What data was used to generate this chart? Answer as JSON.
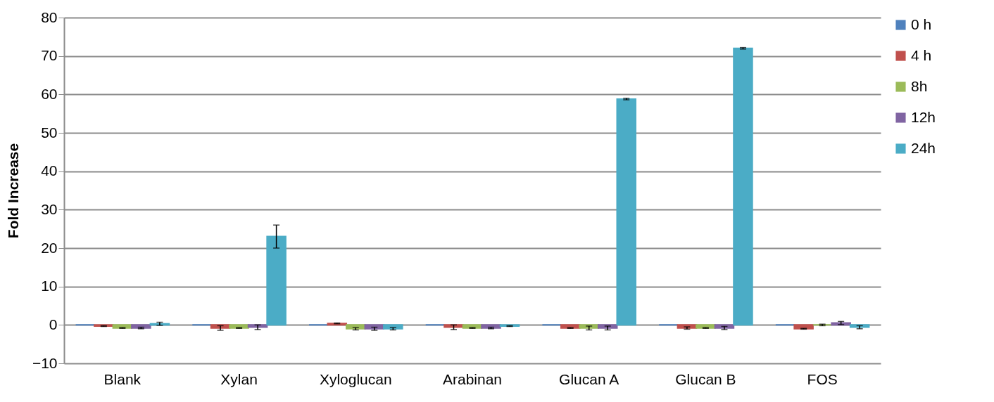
{
  "chart_data": {
    "type": "bar",
    "ylabel": "Fold Increase",
    "categories": [
      "Blank",
      "Xylan",
      "Xyloglucan",
      "Arabinan",
      "Glucan A",
      "Glucan B",
      "FOS"
    ],
    "ylim": [
      -10,
      80
    ],
    "yticks": [
      -10,
      0,
      10,
      20,
      30,
      40,
      50,
      60,
      70,
      80
    ],
    "grid": "y",
    "legend": "right",
    "series": [
      {
        "name": "0 h",
        "color": "#4f81bd",
        "values": [
          0,
          0,
          0,
          0,
          0,
          0,
          0
        ]
      },
      {
        "name": "4 h",
        "color": "#c0504d",
        "values": [
          -0.3,
          -0.8,
          0.4,
          -0.6,
          -0.8,
          -0.8,
          -1
        ],
        "errors": [
          0.1,
          0.6,
          0.1,
          0.6,
          0.1,
          0.3,
          0.1
        ]
      },
      {
        "name": "8h",
        "color": "#9bbb59",
        "values": [
          -0.8,
          -0.8,
          -1,
          -0.8,
          -0.8,
          -0.8,
          0
        ],
        "errors": [
          0.1,
          0.1,
          0.3,
          0.1,
          0.5,
          0.1,
          0.2
        ]
      },
      {
        "name": "12h",
        "color": "#8064a2",
        "values": [
          -0.8,
          -0.6,
          -1,
          -0.8,
          -0.8,
          -0.8,
          0.5
        ],
        "errors": [
          0.2,
          0.6,
          0.4,
          0.2,
          0.5,
          0.4,
          0.4
        ]
      },
      {
        "name": "24h",
        "color": "#4bacc6",
        "values": [
          0.3,
          23,
          -1,
          -0.3,
          58.8,
          72,
          -0.6
        ],
        "errors": [
          0.4,
          3,
          0.3,
          0.1,
          0.2,
          0.2,
          0.4
        ]
      }
    ]
  }
}
